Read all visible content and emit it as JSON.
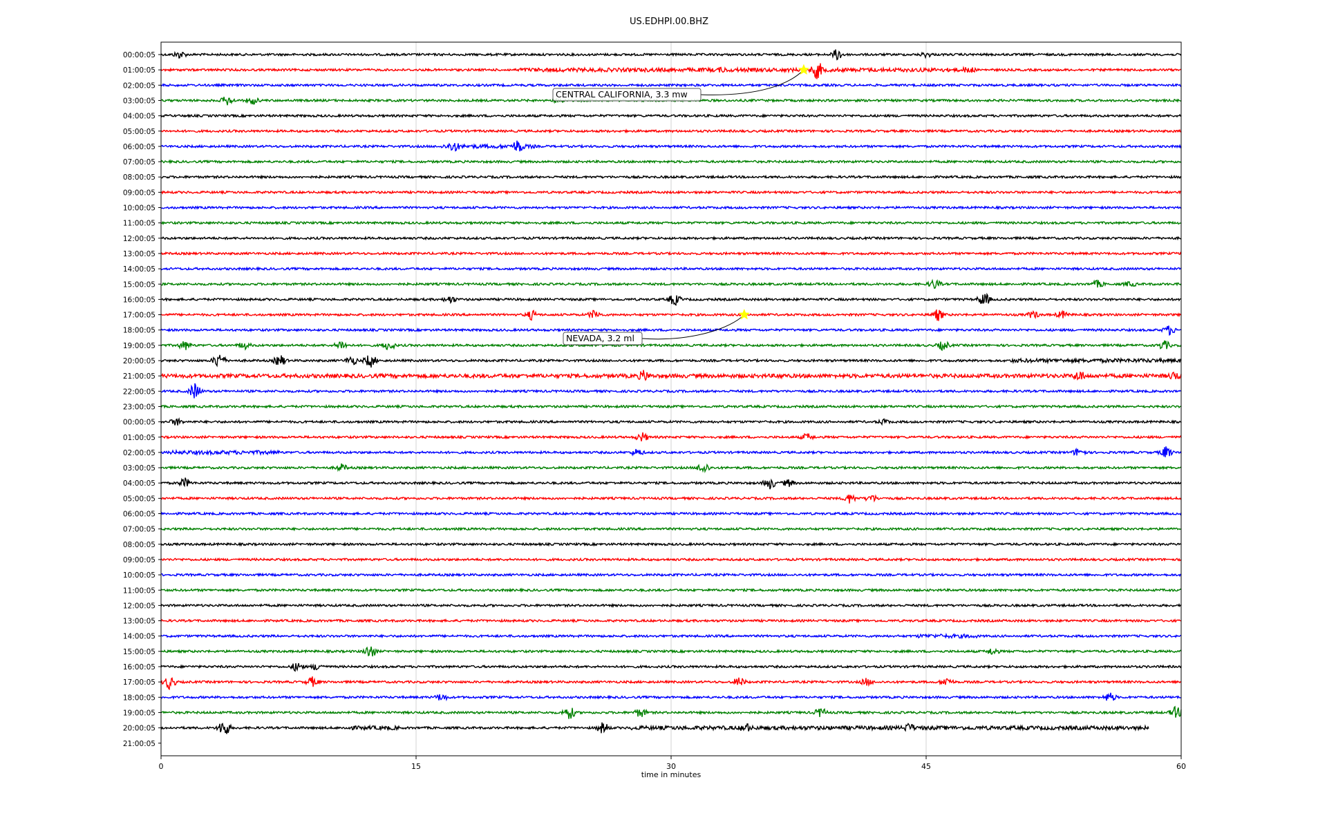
{
  "chart_data": {
    "type": "line",
    "title": "US.EDHPI.00.BHZ",
    "xlabel": "time in minutes",
    "ylabel": "",
    "xlim": [
      0,
      60
    ],
    "x_ticks": [
      0,
      15,
      30,
      45,
      60
    ],
    "grid": "vertical lines at x ticks",
    "color_cycle": [
      "#000000",
      "#ff0000",
      "#0000ff",
      "#008000"
    ],
    "row_labels": [
      "00:00:05",
      "01:00:05",
      "02:00:05",
      "03:00:05",
      "04:00:05",
      "05:00:05",
      "06:00:05",
      "07:00:05",
      "08:00:05",
      "09:00:05",
      "10:00:05",
      "11:00:05",
      "12:00:05",
      "13:00:05",
      "14:00:05",
      "15:00:05",
      "16:00:05",
      "17:00:05",
      "18:00:05",
      "19:00:05",
      "20:00:05",
      "21:00:05",
      "22:00:05",
      "23:00:05",
      "00:00:05",
      "01:00:05",
      "02:00:05",
      "03:00:05",
      "04:00:05",
      "05:00:05",
      "06:00:05",
      "07:00:05",
      "08:00:05",
      "09:00:05",
      "10:00:05",
      "11:00:05",
      "12:00:05",
      "13:00:05",
      "14:00:05",
      "15:00:05",
      "16:00:05",
      "17:00:05",
      "18:00:05",
      "19:00:05",
      "20:00:05",
      "21:00:05"
    ],
    "last_trace_end_minute": 58.1,
    "annotations": [
      {
        "text": "CENTRAL CALIFORNIA, 3.3 mw",
        "row": 1,
        "minute": 37.8
      },
      {
        "text": "NEVADA, 3.2 ml",
        "row": 17,
        "minute": 34.3
      }
    ],
    "events": [
      [
        0,
        39.8,
        5
      ],
      [
        0,
        1.1,
        3
      ],
      [
        0,
        45.0,
        2
      ],
      [
        1,
        38.6,
        8
      ],
      [
        1,
        47.5,
        3
      ],
      [
        1,
        33.0,
        2
      ],
      [
        3,
        3.9,
        4
      ],
      [
        3,
        5.4,
        3
      ],
      [
        3,
        23.4,
        2
      ],
      [
        6,
        17.2,
        5
      ],
      [
        6,
        21.0,
        6
      ],
      [
        15,
        45.5,
        4
      ],
      [
        15,
        55.1,
        3
      ],
      [
        15,
        57.0,
        2
      ],
      [
        16,
        17.0,
        3
      ],
      [
        16,
        30.2,
        5
      ],
      [
        16,
        48.4,
        6
      ],
      [
        17,
        21.8,
        4
      ],
      [
        17,
        25.5,
        4
      ],
      [
        17,
        45.7,
        5
      ],
      [
        17,
        51.3,
        3
      ],
      [
        17,
        53.0,
        3
      ],
      [
        18,
        59.3,
        4
      ],
      [
        19,
        1.4,
        4
      ],
      [
        19,
        4.9,
        3
      ],
      [
        19,
        10.6,
        4
      ],
      [
        19,
        13.4,
        4
      ],
      [
        19,
        46.0,
        4
      ],
      [
        19,
        59.0,
        4
      ],
      [
        20,
        3.4,
        7
      ],
      [
        20,
        7.0,
        5
      ],
      [
        20,
        11.2,
        4
      ],
      [
        20,
        12.3,
        6
      ],
      [
        21,
        28.4,
        5
      ],
      [
        21,
        54.0,
        5
      ],
      [
        21,
        59.6,
        4
      ],
      [
        21,
        36.4,
        2
      ],
      [
        22,
        2.0,
        7
      ],
      [
        24,
        0.9,
        3
      ],
      [
        24,
        42.5,
        2
      ],
      [
        25,
        28.3,
        4
      ],
      [
        25,
        38.0,
        3
      ],
      [
        26,
        28.0,
        3
      ],
      [
        26,
        54.0,
        4
      ],
      [
        26,
        59.1,
        5
      ],
      [
        27,
        10.6,
        3
      ],
      [
        27,
        31.9,
        5
      ],
      [
        28,
        1.4,
        4
      ],
      [
        28,
        35.8,
        5
      ],
      [
        28,
        36.9,
        3
      ],
      [
        29,
        40.5,
        4
      ],
      [
        29,
        41.8,
        3
      ],
      [
        39,
        12.3,
        6
      ],
      [
        39,
        48.9,
        3
      ],
      [
        40,
        8.0,
        4
      ],
      [
        40,
        9.2,
        3
      ],
      [
        41,
        0.5,
        6
      ],
      [
        41,
        8.9,
        4
      ],
      [
        41,
        34.0,
        4
      ],
      [
        41,
        41.5,
        3
      ],
      [
        41,
        46.2,
        4
      ],
      [
        42,
        16.5,
        3
      ],
      [
        42,
        55.8,
        4
      ],
      [
        43,
        24.0,
        6
      ],
      [
        43,
        28.2,
        4
      ],
      [
        43,
        38.8,
        4
      ],
      [
        43,
        59.7,
        5
      ],
      [
        44,
        3.7,
        8
      ],
      [
        44,
        26.0,
        5
      ],
      [
        44,
        34.4,
        4
      ],
      [
        44,
        44.0,
        4
      ]
    ],
    "noisy_segments": [
      [
        1,
        21.0,
        47.0
      ],
      [
        6,
        16.5,
        22.0
      ],
      [
        21,
        0.0,
        60.0
      ],
      [
        20,
        50.0,
        60.0
      ],
      [
        38,
        44.5,
        48.0
      ],
      [
        44,
        10.8,
        14.0
      ],
      [
        44,
        27.5,
        58.0
      ],
      [
        26,
        0.5,
        7.0
      ]
    ]
  }
}
